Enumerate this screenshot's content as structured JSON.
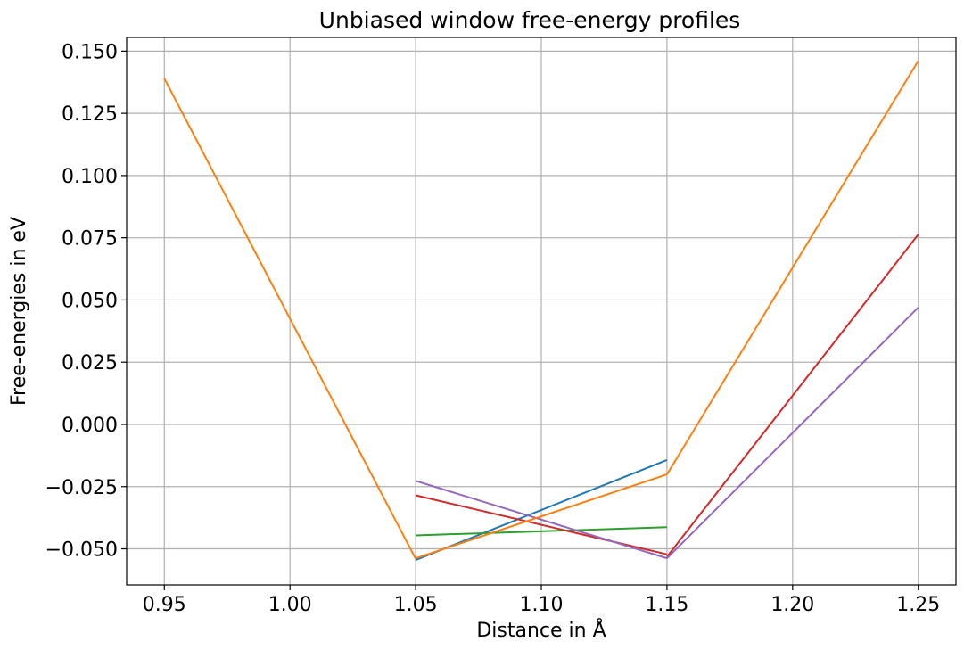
{
  "chart_data": {
    "type": "line",
    "title": "Unbiased window free-energy profiles",
    "xlabel": "Distance in Å",
    "ylabel": "Free-energies in eV",
    "xlim": [
      0.935,
      1.265
    ],
    "ylim": [
      -0.0645,
      0.1555
    ],
    "xticks": [
      0.95,
      1.0,
      1.05,
      1.1,
      1.15,
      1.2,
      1.25
    ],
    "xtick_labels": [
      "0.95",
      "1.00",
      "1.05",
      "1.10",
      "1.15",
      "1.20",
      "1.25"
    ],
    "yticks": [
      -0.05,
      -0.025,
      0.0,
      0.025,
      0.05,
      0.075,
      0.1,
      0.125,
      0.15
    ],
    "ytick_labels": [
      "−0.050",
      "−0.025",
      "0.000",
      "0.025",
      "0.050",
      "0.075",
      "0.100",
      "0.125",
      "0.150"
    ],
    "grid": true,
    "series": [
      {
        "color": "#ff7f0e",
        "x": [
          0.95,
          1.05
        ],
        "y": [
          0.139,
          -0.054
        ]
      },
      {
        "color": "#1f77b4",
        "x": [
          1.05,
          1.15
        ],
        "y": [
          -0.0545,
          -0.0143
        ]
      },
      {
        "color": "#2ca02c",
        "x": [
          1.05,
          1.15
        ],
        "y": [
          -0.0446,
          -0.0413
        ]
      },
      {
        "color": "#d62728",
        "x": [
          1.05,
          1.15
        ],
        "y": [
          -0.0285,
          -0.0522
        ]
      },
      {
        "color": "#9467bd",
        "x": [
          1.05,
          1.15
        ],
        "y": [
          -0.0227,
          -0.0538
        ]
      },
      {
        "color": "#ff7f0e",
        "x": [
          1.05,
          1.15
        ],
        "y": [
          -0.0538,
          -0.0201
        ]
      },
      {
        "color": "#d62728",
        "x": [
          1.15,
          1.25
        ],
        "y": [
          -0.0532,
          0.0763
        ]
      },
      {
        "color": "#9467bd",
        "x": [
          1.15,
          1.25
        ],
        "y": [
          -0.0538,
          0.047
        ]
      },
      {
        "color": "#ff7f0e",
        "x": [
          1.15,
          1.25
        ],
        "y": [
          -0.0201,
          0.1461
        ]
      }
    ]
  }
}
